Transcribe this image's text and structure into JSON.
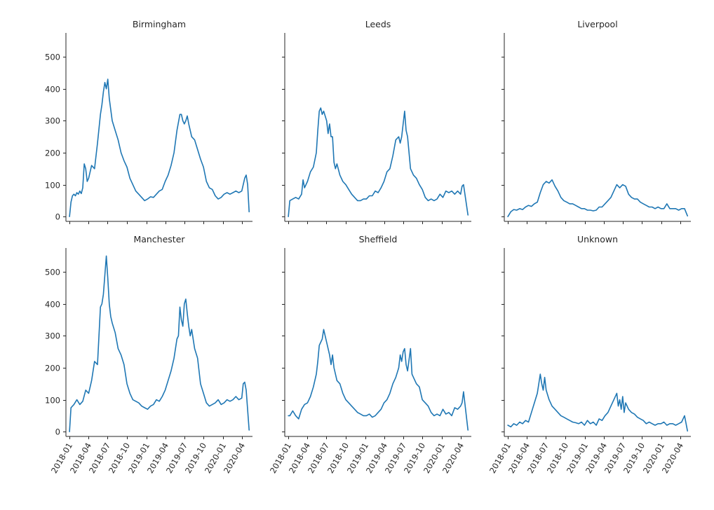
{
  "chart_data": {
    "type": "line",
    "layout": "facet-grid 2x3",
    "sharey": true,
    "sharex": true,
    "ylim": [
      -15,
      575
    ],
    "xlim": [
      "2017-12-15",
      "2020-05-20"
    ],
    "yticks": [
      0,
      100,
      200,
      300,
      400,
      500
    ],
    "ytick_labels": [
      "0",
      "100",
      "200",
      "300",
      "400",
      "500"
    ],
    "xticks": [
      "2018-01-01",
      "2018-04-01",
      "2018-07-01",
      "2018-10-01",
      "2019-01-01",
      "2019-04-01",
      "2019-07-01",
      "2019-10-01",
      "2020-01-01",
      "2020-04-01"
    ],
    "xtick_labels": [
      "2018-01",
      "2018-04",
      "2018-07",
      "2018-10",
      "2019-01",
      "2019-04",
      "2019-07",
      "2019-10",
      "2020-01",
      "2020-04"
    ],
    "xtick_rotation": 60,
    "line_color": "#1f77b4",
    "grid": false,
    "panels": [
      {
        "title": "Birmingham",
        "x": [
          "2018-01-01",
          "2018-01-08",
          "2018-01-15",
          "2018-01-22",
          "2018-01-29",
          "2018-02-05",
          "2018-02-12",
          "2018-02-19",
          "2018-02-26",
          "2018-03-05",
          "2018-03-12",
          "2018-03-19",
          "2018-03-26",
          "2018-04-02",
          "2018-04-16",
          "2018-04-30",
          "2018-05-14",
          "2018-05-28",
          "2018-06-04",
          "2018-06-11",
          "2018-06-18",
          "2018-06-25",
          "2018-07-02",
          "2018-07-09",
          "2018-07-23",
          "2018-08-06",
          "2018-08-20",
          "2018-09-03",
          "2018-09-17",
          "2018-10-01",
          "2018-10-15",
          "2018-10-29",
          "2018-11-12",
          "2018-11-26",
          "2018-12-10",
          "2018-12-24",
          "2019-01-07",
          "2019-01-21",
          "2019-02-04",
          "2019-02-18",
          "2019-03-04",
          "2019-03-18",
          "2019-04-01",
          "2019-04-15",
          "2019-04-29",
          "2019-05-13",
          "2019-05-27",
          "2019-06-10",
          "2019-06-17",
          "2019-06-24",
          "2019-07-01",
          "2019-07-08",
          "2019-07-15",
          "2019-07-22",
          "2019-08-05",
          "2019-08-19",
          "2019-09-02",
          "2019-09-16",
          "2019-09-30",
          "2019-10-14",
          "2019-10-28",
          "2019-11-11",
          "2019-11-25",
          "2019-12-09",
          "2019-12-23",
          "2020-01-06",
          "2020-01-20",
          "2020-02-03",
          "2020-02-17",
          "2020-03-02",
          "2020-03-16",
          "2020-03-30",
          "2020-04-13",
          "2020-04-20",
          "2020-04-27",
          "2020-05-04"
        ],
        "y": [
          0,
          45,
          65,
          70,
          65,
          75,
          70,
          80,
          72,
          90,
          165,
          150,
          110,
          120,
          160,
          150,
          230,
          320,
          350,
          390,
          420,
          400,
          430,
          370,
          300,
          270,
          240,
          200,
          175,
          155,
          120,
          100,
          80,
          70,
          60,
          50,
          55,
          62,
          60,
          70,
          80,
          85,
          110,
          130,
          160,
          200,
          270,
          320,
          320,
          300,
          290,
          300,
          315,
          290,
          250,
          240,
          210,
          180,
          155,
          110,
          90,
          85,
          65,
          55,
          60,
          70,
          75,
          70,
          75,
          80,
          75,
          80,
          120,
          130,
          100,
          15
        ]
      },
      {
        "title": "Leeds",
        "x": [
          "2018-01-01",
          "2018-01-08",
          "2018-01-22",
          "2018-02-05",
          "2018-02-19",
          "2018-03-05",
          "2018-03-12",
          "2018-03-19",
          "2018-04-02",
          "2018-04-16",
          "2018-04-30",
          "2018-05-14",
          "2018-05-21",
          "2018-05-28",
          "2018-06-04",
          "2018-06-11",
          "2018-06-18",
          "2018-07-02",
          "2018-07-09",
          "2018-07-16",
          "2018-07-23",
          "2018-07-30",
          "2018-08-06",
          "2018-08-13",
          "2018-08-20",
          "2018-09-03",
          "2018-09-17",
          "2018-10-01",
          "2018-10-15",
          "2018-10-29",
          "2018-11-12",
          "2018-11-26",
          "2018-12-10",
          "2018-12-24",
          "2019-01-07",
          "2019-01-21",
          "2019-02-04",
          "2019-02-18",
          "2019-03-04",
          "2019-03-18",
          "2019-04-01",
          "2019-04-15",
          "2019-04-29",
          "2019-05-13",
          "2019-05-27",
          "2019-06-10",
          "2019-06-17",
          "2019-06-24",
          "2019-07-01",
          "2019-07-08",
          "2019-07-15",
          "2019-07-22",
          "2019-08-05",
          "2019-08-19",
          "2019-09-02",
          "2019-09-16",
          "2019-09-30",
          "2019-10-14",
          "2019-10-28",
          "2019-11-11",
          "2019-11-25",
          "2019-12-09",
          "2019-12-23",
          "2020-01-06",
          "2020-01-20",
          "2020-02-03",
          "2020-02-17",
          "2020-03-02",
          "2020-03-16",
          "2020-03-30",
          "2020-04-06",
          "2020-04-13",
          "2020-05-04"
        ],
        "y": [
          0,
          50,
          55,
          60,
          55,
          70,
          115,
          90,
          110,
          140,
          155,
          200,
          270,
          330,
          340,
          320,
          330,
          300,
          260,
          290,
          250,
          250,
          170,
          150,
          165,
          130,
          110,
          100,
          85,
          70,
          60,
          50,
          50,
          55,
          55,
          65,
          65,
          80,
          75,
          90,
          110,
          140,
          150,
          190,
          240,
          250,
          230,
          250,
          290,
          330,
          270,
          250,
          150,
          130,
          120,
          100,
          85,
          60,
          50,
          55,
          50,
          55,
          70,
          60,
          80,
          75,
          80,
          70,
          80,
          70,
          95,
          100,
          5
        ]
      },
      {
        "title": "Liverpool",
        "x": [
          "2018-01-01",
          "2018-01-15",
          "2018-01-29",
          "2018-02-12",
          "2018-02-26",
          "2018-03-12",
          "2018-03-26",
          "2018-04-09",
          "2018-04-23",
          "2018-05-07",
          "2018-05-21",
          "2018-06-04",
          "2018-06-18",
          "2018-07-02",
          "2018-07-16",
          "2018-07-30",
          "2018-08-13",
          "2018-08-27",
          "2018-09-10",
          "2018-09-24",
          "2018-10-08",
          "2018-10-22",
          "2018-11-05",
          "2018-11-19",
          "2018-12-03",
          "2018-12-17",
          "2018-12-31",
          "2019-01-14",
          "2019-01-28",
          "2019-02-11",
          "2019-02-25",
          "2019-03-11",
          "2019-03-25",
          "2019-04-08",
          "2019-04-22",
          "2019-05-06",
          "2019-05-20",
          "2019-06-03",
          "2019-06-17",
          "2019-07-01",
          "2019-07-15",
          "2019-07-29",
          "2019-08-12",
          "2019-08-26",
          "2019-09-09",
          "2019-09-23",
          "2019-10-07",
          "2019-10-21",
          "2019-11-04",
          "2019-11-18",
          "2019-12-02",
          "2019-12-16",
          "2019-12-30",
          "2020-01-13",
          "2020-01-27",
          "2020-02-10",
          "2020-02-24",
          "2020-03-09",
          "2020-03-23",
          "2020-04-06",
          "2020-04-20",
          "2020-05-04"
        ],
        "y": [
          0,
          15,
          22,
          20,
          25,
          22,
          30,
          35,
          32,
          40,
          45,
          75,
          100,
          110,
          105,
          115,
          95,
          80,
          60,
          50,
          45,
          40,
          40,
          35,
          30,
          25,
          25,
          20,
          20,
          18,
          20,
          30,
          30,
          40,
          50,
          60,
          80,
          100,
          90,
          100,
          95,
          70,
          60,
          55,
          55,
          45,
          40,
          35,
          30,
          30,
          25,
          30,
          25,
          25,
          40,
          25,
          25,
          25,
          20,
          25,
          25,
          2
        ]
      },
      {
        "title": "Manchester",
        "x": [
          "2018-01-01",
          "2018-01-08",
          "2018-01-22",
          "2018-02-05",
          "2018-02-19",
          "2018-03-05",
          "2018-03-19",
          "2018-04-02",
          "2018-04-16",
          "2018-04-30",
          "2018-05-14",
          "2018-05-28",
          "2018-06-04",
          "2018-06-11",
          "2018-06-18",
          "2018-06-25",
          "2018-07-02",
          "2018-07-09",
          "2018-07-16",
          "2018-07-23",
          "2018-08-06",
          "2018-08-20",
          "2018-09-03",
          "2018-09-17",
          "2018-10-01",
          "2018-10-15",
          "2018-10-29",
          "2018-11-12",
          "2018-11-26",
          "2018-12-10",
          "2018-12-24",
          "2019-01-07",
          "2019-01-21",
          "2019-02-04",
          "2019-02-18",
          "2019-03-04",
          "2019-03-18",
          "2019-04-01",
          "2019-04-15",
          "2019-04-29",
          "2019-05-13",
          "2019-05-27",
          "2019-06-03",
          "2019-06-10",
          "2019-06-17",
          "2019-06-24",
          "2019-07-01",
          "2019-07-08",
          "2019-07-15",
          "2019-07-22",
          "2019-07-29",
          "2019-08-05",
          "2019-08-19",
          "2019-09-02",
          "2019-09-16",
          "2019-09-30",
          "2019-10-14",
          "2019-10-28",
          "2019-11-11",
          "2019-11-25",
          "2019-12-09",
          "2019-12-23",
          "2020-01-06",
          "2020-01-20",
          "2020-02-03",
          "2020-02-17",
          "2020-03-02",
          "2020-03-16",
          "2020-03-30",
          "2020-04-06",
          "2020-04-13",
          "2020-04-20",
          "2020-05-04"
        ],
        "y": [
          0,
          75,
          85,
          100,
          85,
          95,
          130,
          120,
          160,
          220,
          210,
          390,
          400,
          430,
          490,
          550,
          480,
          400,
          360,
          340,
          310,
          260,
          240,
          210,
          150,
          120,
          100,
          95,
          90,
          80,
          75,
          70,
          80,
          85,
          100,
          95,
          110,
          130,
          160,
          190,
          230,
          290,
          300,
          390,
          350,
          330,
          400,
          415,
          370,
          330,
          300,
          320,
          260,
          230,
          150,
          120,
          90,
          80,
          85,
          90,
          100,
          85,
          90,
          100,
          95,
          100,
          110,
          100,
          105,
          150,
          155,
          130,
          5
        ]
      },
      {
        "title": "Sheffield",
        "x": [
          "2018-01-01",
          "2018-01-08",
          "2018-01-22",
          "2018-02-05",
          "2018-02-19",
          "2018-03-05",
          "2018-03-19",
          "2018-04-02",
          "2018-04-16",
          "2018-04-30",
          "2018-05-14",
          "2018-05-21",
          "2018-05-28",
          "2018-06-04",
          "2018-06-11",
          "2018-06-18",
          "2018-07-02",
          "2018-07-16",
          "2018-07-23",
          "2018-07-30",
          "2018-08-06",
          "2018-08-20",
          "2018-09-03",
          "2018-09-17",
          "2018-10-01",
          "2018-10-15",
          "2018-10-29",
          "2018-11-12",
          "2018-11-26",
          "2018-12-10",
          "2018-12-24",
          "2019-01-07",
          "2019-01-21",
          "2019-02-04",
          "2019-02-18",
          "2019-03-04",
          "2019-03-18",
          "2019-04-01",
          "2019-04-15",
          "2019-04-29",
          "2019-05-13",
          "2019-05-27",
          "2019-06-10",
          "2019-06-17",
          "2019-06-24",
          "2019-07-01",
          "2019-07-08",
          "2019-07-15",
          "2019-07-22",
          "2019-08-05",
          "2019-08-12",
          "2019-08-19",
          "2019-09-02",
          "2019-09-16",
          "2019-09-30",
          "2019-10-14",
          "2019-10-28",
          "2019-11-11",
          "2019-11-25",
          "2019-12-09",
          "2019-12-23",
          "2020-01-06",
          "2020-01-20",
          "2020-02-03",
          "2020-02-17",
          "2020-03-02",
          "2020-03-16",
          "2020-03-30",
          "2020-04-06",
          "2020-04-13",
          "2020-05-04"
        ],
        "y": [
          50,
          50,
          65,
          50,
          40,
          70,
          85,
          90,
          110,
          140,
          180,
          220,
          270,
          280,
          290,
          320,
          280,
          240,
          210,
          240,
          200,
          160,
          150,
          120,
          100,
          90,
          80,
          70,
          60,
          55,
          50,
          50,
          55,
          45,
          50,
          60,
          70,
          90,
          100,
          120,
          150,
          170,
          200,
          240,
          220,
          250,
          260,
          210,
          190,
          260,
          180,
          170,
          150,
          140,
          100,
          90,
          80,
          60,
          50,
          55,
          50,
          70,
          55,
          60,
          50,
          75,
          70,
          80,
          90,
          125,
          5
        ]
      },
      {
        "title": "Unknown",
        "x": [
          "2018-01-01",
          "2018-01-15",
          "2018-01-29",
          "2018-02-12",
          "2018-02-26",
          "2018-03-12",
          "2018-03-26",
          "2018-04-09",
          "2018-04-23",
          "2018-05-07",
          "2018-05-21",
          "2018-06-04",
          "2018-06-11",
          "2018-06-18",
          "2018-06-25",
          "2018-07-02",
          "2018-07-16",
          "2018-07-30",
          "2018-08-13",
          "2018-08-27",
          "2018-09-10",
          "2018-09-24",
          "2018-10-08",
          "2018-10-22",
          "2018-11-05",
          "2018-11-19",
          "2018-12-03",
          "2018-12-17",
          "2018-12-31",
          "2019-01-14",
          "2019-01-28",
          "2019-02-11",
          "2019-02-25",
          "2019-03-11",
          "2019-03-25",
          "2019-04-08",
          "2019-04-22",
          "2019-05-06",
          "2019-05-20",
          "2019-06-03",
          "2019-06-10",
          "2019-06-17",
          "2019-06-24",
          "2019-07-01",
          "2019-07-08",
          "2019-07-15",
          "2019-07-29",
          "2019-08-12",
          "2019-08-26",
          "2019-09-09",
          "2019-09-23",
          "2019-10-07",
          "2019-10-21",
          "2019-11-04",
          "2019-11-18",
          "2019-12-02",
          "2019-12-16",
          "2019-12-30",
          "2020-01-13",
          "2020-01-27",
          "2020-02-10",
          "2020-02-24",
          "2020-03-09",
          "2020-03-23",
          "2020-04-06",
          "2020-04-20",
          "2020-05-04"
        ],
        "y": [
          20,
          15,
          25,
          20,
          30,
          25,
          35,
          30,
          60,
          90,
          120,
          180,
          150,
          130,
          170,
          130,
          100,
          80,
          70,
          60,
          50,
          45,
          40,
          35,
          30,
          28,
          25,
          30,
          20,
          35,
          25,
          30,
          20,
          40,
          35,
          50,
          60,
          80,
          100,
          120,
          80,
          100,
          70,
          110,
          60,
          90,
          70,
          60,
          55,
          45,
          40,
          35,
          25,
          30,
          25,
          20,
          25,
          25,
          30,
          20,
          25,
          25,
          20,
          25,
          30,
          50,
          2
        ]
      }
    ]
  }
}
